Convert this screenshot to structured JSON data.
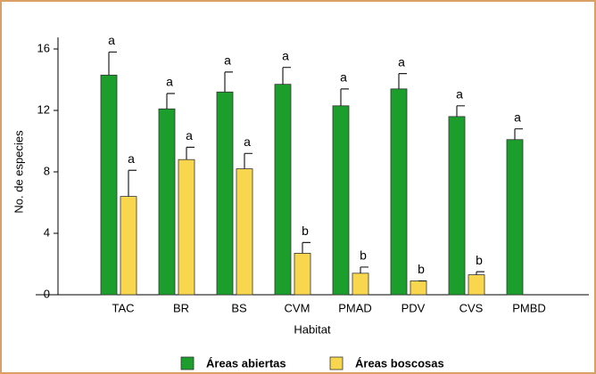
{
  "chart_data": {
    "type": "bar",
    "x_label": "Habitat",
    "y_label": "No. de especies",
    "categories": [
      "TAC",
      "BR",
      "BS",
      "CVM",
      "PMAD",
      "PDV",
      "CVS",
      "PMBD"
    ],
    "series": [
      {
        "name": "Áreas abiertas",
        "color": "#1b9e2c",
        "values": [
          14.3,
          12.1,
          13.2,
          13.7,
          12.3,
          13.4,
          11.6,
          10.1
        ],
        "errors": [
          1.5,
          1.0,
          1.3,
          1.1,
          1.1,
          1.0,
          0.7,
          0.7
        ],
        "annotations": [
          "a",
          "a",
          "a",
          "a",
          "a",
          "a",
          "a",
          "a"
        ]
      },
      {
        "name": "Áreas boscosas",
        "color": "#f8d74e",
        "values": [
          6.4,
          8.8,
          8.2,
          2.7,
          1.4,
          0.9,
          1.3,
          null
        ],
        "errors": [
          1.7,
          0.8,
          1.0,
          0.7,
          0.4,
          0,
          0.2,
          null
        ],
        "annotations": [
          "a",
          "a",
          "a",
          "b",
          "b",
          "b",
          "b",
          null
        ]
      }
    ],
    "ylim": [
      0,
      16
    ],
    "yticks": [
      0,
      4,
      8,
      12,
      16
    ],
    "legend": "bottom"
  }
}
